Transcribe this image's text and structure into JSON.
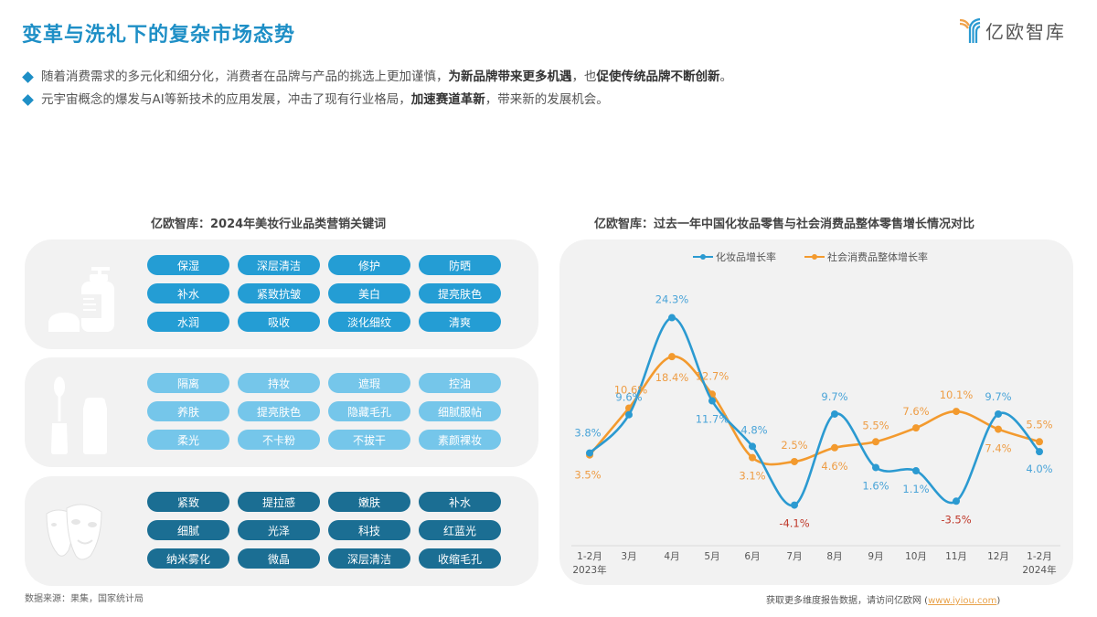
{
  "header": {
    "title": "变革与洗礼下的复杂市场态势",
    "logo_text": "亿欧智库"
  },
  "bullets": [
    {
      "normal1": "随着消费需求的多元化和细分化，消费者在品牌与产品的挑选上更加谨慎，",
      "bold1": "为新品牌带来更多机遇",
      "normal2": "，也",
      "bold2": "促使传统品牌不断创新",
      "normal3": "。"
    },
    {
      "normal1": "元宇宙概念的爆发与AI等新技术的应用发展，冲击了现有行业格局，",
      "bold1": "加速赛道革新",
      "normal2": "，带来新的发展机会。",
      "bold2": "",
      "normal3": ""
    }
  ],
  "keywords": {
    "title": "亿欧智库：2024年美妆行业品类营销关键词",
    "groups": [
      {
        "icon": "skincare-bottle-icon",
        "color": "#249dd4",
        "items": [
          "保湿",
          "深层清洁",
          "修护",
          "防晒",
          "补水",
          "紧致抗皱",
          "美白",
          "提亮肤色",
          "水润",
          "吸收",
          "淡化细纹",
          "清爽"
        ]
      },
      {
        "icon": "makeup-bottles-icon",
        "color": "#75c6ea",
        "items": [
          "隔离",
          "持妆",
          "遮瑕",
          "控油",
          "养肤",
          "提亮肤色",
          "隐藏毛孔",
          "细腻服帖",
          "柔光",
          "不卡粉",
          "不拔干",
          "素颜裸妆"
        ]
      },
      {
        "icon": "face-mask-icon",
        "color": "#1b6e93",
        "items": [
          "紧致",
          "提拉感",
          "嫩肤",
          "补水",
          "细腻",
          "光泽",
          "科技",
          "红蓝光",
          "纳米雾化",
          "微晶",
          "深层清洁",
          "收缩毛孔"
        ]
      }
    ]
  },
  "source": "数据来源：果集，国家统计局",
  "footer": {
    "text": "获取更多维度报告数据，请访问亿欧网 (",
    "link": "www.iyiou.com",
    "close": ")"
  },
  "chart_data": {
    "type": "line",
    "title": "亿欧智库：过去一年中国化妆品零售与社会消费品整体零售增长情况对比",
    "categories": [
      "1-2月 2023年",
      "3月",
      "4月",
      "5月",
      "6月",
      "7月",
      "8月",
      "9月",
      "10月",
      "11月",
      "12月",
      "1-2月 2024年"
    ],
    "x_tick_labels": [
      {
        "line1": "1-2月",
        "line2": "2023年"
      },
      {
        "line1": "3月",
        "line2": ""
      },
      {
        "line1": "4月",
        "line2": ""
      },
      {
        "line1": "5月",
        "line2": ""
      },
      {
        "line1": "6月",
        "line2": ""
      },
      {
        "line1": "7月",
        "line2": ""
      },
      {
        "line1": "8月",
        "line2": ""
      },
      {
        "line1": "9月",
        "line2": ""
      },
      {
        "line1": "10月",
        "line2": ""
      },
      {
        "line1": "11月",
        "line2": ""
      },
      {
        "line1": "12月",
        "line2": ""
      },
      {
        "line1": "1-2月",
        "line2": "2024年"
      }
    ],
    "series": [
      {
        "name": "化妆品增长率",
        "color": "#2b9ad1",
        "values": [
          3.8,
          9.6,
          24.3,
          11.7,
          4.8,
          -4.1,
          9.7,
          1.6,
          1.1,
          -3.5,
          9.7,
          4.0
        ]
      },
      {
        "name": "社会消费品整体增长率",
        "color": "#f39a2e",
        "values": [
          3.5,
          10.6,
          18.4,
          12.7,
          3.1,
          2.5,
          4.6,
          5.5,
          7.6,
          10.1,
          7.4,
          5.5
        ]
      }
    ],
    "negative_label_color": "#c0392b",
    "xlabel": "",
    "ylabel": "",
    "unit": "%",
    "grid": false,
    "legend_position": "top"
  }
}
